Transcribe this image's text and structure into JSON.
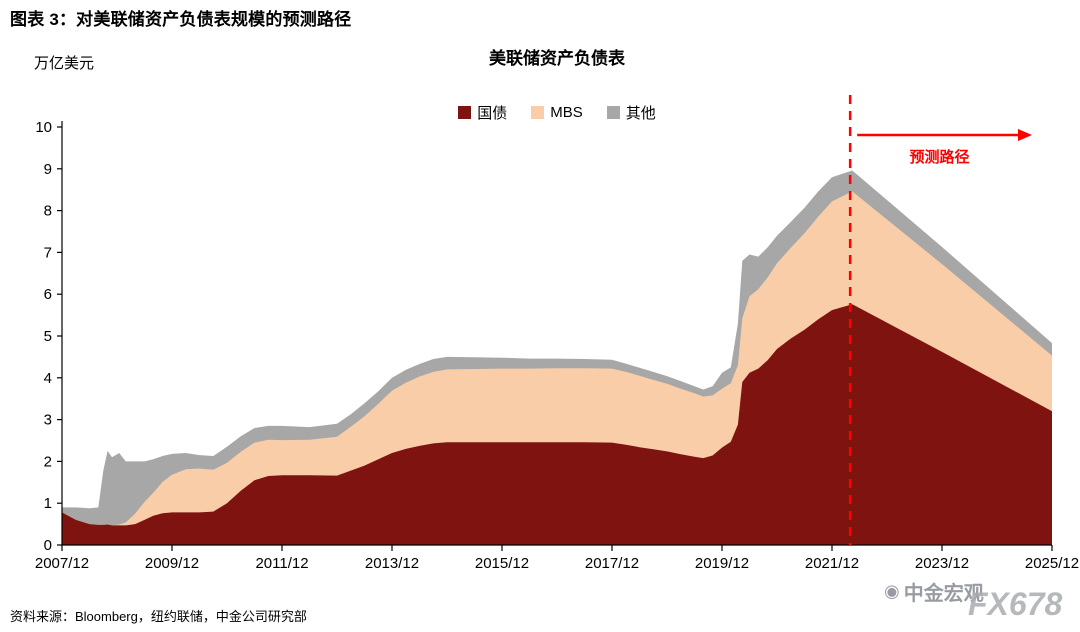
{
  "page": {
    "title": "图表 3：对美联储资产负债表规模的预测路径",
    "source": "资料来源：Bloomberg，纽约联储，中金公司研究部",
    "watermark_cicc": "中金宏观",
    "watermark_fx": "FX678"
  },
  "chart_data": {
    "type": "area",
    "subtype": "stacked",
    "title": "美联储资产负债表",
    "ylabel_unit": "万亿美元",
    "ylim": [
      0,
      10
    ],
    "y_ticks": [
      0,
      1,
      2,
      3,
      4,
      5,
      6,
      7,
      8,
      9,
      10
    ],
    "t_range": [
      2007.92,
      2025.92
    ],
    "x_ticks": [
      {
        "t": 2007.92,
        "label": "2007/12"
      },
      {
        "t": 2009.92,
        "label": "2009/12"
      },
      {
        "t": 2011.92,
        "label": "2011/12"
      },
      {
        "t": 2013.92,
        "label": "2013/12"
      },
      {
        "t": 2015.92,
        "label": "2015/12"
      },
      {
        "t": 2017.92,
        "label": "2017/12"
      },
      {
        "t": 2019.92,
        "label": "2019/12"
      },
      {
        "t": 2021.92,
        "label": "2021/12"
      },
      {
        "t": 2023.92,
        "label": "2023/12"
      },
      {
        "t": 2025.92,
        "label": "2025/12"
      }
    ],
    "legend": [
      {
        "label": "国债",
        "color": "#7F1310"
      },
      {
        "label": "MBS",
        "color": "#F8CDA8"
      },
      {
        "label": "其他",
        "color": "#A7A7A7"
      }
    ],
    "forecast": {
      "divider_t": 2022.25,
      "label": "预测路径",
      "color": "#FF0000"
    },
    "points_format": [
      "year_decimal",
      "国债",
      "MBS",
      "其他"
    ],
    "points": [
      [
        2007.92,
        0.78,
        0.0,
        0.12
      ],
      [
        2008.17,
        0.6,
        0.0,
        0.3
      ],
      [
        2008.42,
        0.5,
        0.0,
        0.38
      ],
      [
        2008.58,
        0.48,
        0.0,
        0.42
      ],
      [
        2008.67,
        0.48,
        0.0,
        1.3
      ],
      [
        2008.75,
        0.49,
        0.0,
        1.76
      ],
      [
        2008.83,
        0.47,
        0.0,
        1.63
      ],
      [
        2008.96,
        0.47,
        0.02,
        1.71
      ],
      [
        2009.08,
        0.47,
        0.07,
        1.46
      ],
      [
        2009.25,
        0.5,
        0.25,
        1.25
      ],
      [
        2009.42,
        0.6,
        0.43,
        0.97
      ],
      [
        2009.58,
        0.7,
        0.55,
        0.8
      ],
      [
        2009.75,
        0.76,
        0.75,
        0.62
      ],
      [
        2009.92,
        0.78,
        0.9,
        0.5
      ],
      [
        2010.17,
        0.78,
        1.03,
        0.39
      ],
      [
        2010.42,
        0.78,
        1.05,
        0.32
      ],
      [
        2010.67,
        0.8,
        1.0,
        0.33
      ],
      [
        2010.92,
        1.0,
        0.97,
        0.38
      ],
      [
        2011.17,
        1.3,
        0.93,
        0.37
      ],
      [
        2011.42,
        1.55,
        0.9,
        0.35
      ],
      [
        2011.67,
        1.65,
        0.87,
        0.33
      ],
      [
        2011.92,
        1.67,
        0.84,
        0.34
      ],
      [
        2012.42,
        1.67,
        0.85,
        0.3
      ],
      [
        2012.92,
        1.66,
        0.93,
        0.31
      ],
      [
        2013.17,
        1.78,
        1.05,
        0.3
      ],
      [
        2013.42,
        1.9,
        1.18,
        0.31
      ],
      [
        2013.67,
        2.05,
        1.33,
        0.3
      ],
      [
        2013.92,
        2.2,
        1.49,
        0.31
      ],
      [
        2014.17,
        2.3,
        1.58,
        0.31
      ],
      [
        2014.42,
        2.37,
        1.66,
        0.3
      ],
      [
        2014.67,
        2.43,
        1.71,
        0.31
      ],
      [
        2014.92,
        2.46,
        1.74,
        0.3
      ],
      [
        2015.42,
        2.46,
        1.75,
        0.28
      ],
      [
        2015.92,
        2.46,
        1.76,
        0.26
      ],
      [
        2016.42,
        2.46,
        1.76,
        0.24
      ],
      [
        2016.92,
        2.46,
        1.77,
        0.23
      ],
      [
        2017.42,
        2.46,
        1.77,
        0.22
      ],
      [
        2017.92,
        2.45,
        1.77,
        0.21
      ],
      [
        2018.17,
        2.4,
        1.74,
        0.2
      ],
      [
        2018.42,
        2.34,
        1.71,
        0.19
      ],
      [
        2018.67,
        2.29,
        1.66,
        0.19
      ],
      [
        2018.92,
        2.24,
        1.62,
        0.18
      ],
      [
        2019.17,
        2.17,
        1.57,
        0.18
      ],
      [
        2019.42,
        2.11,
        1.52,
        0.17
      ],
      [
        2019.58,
        2.08,
        1.47,
        0.17
      ],
      [
        2019.75,
        2.14,
        1.44,
        0.22
      ],
      [
        2019.92,
        2.33,
        1.41,
        0.38
      ],
      [
        2020.08,
        2.47,
        1.4,
        0.38
      ],
      [
        2020.21,
        2.88,
        1.42,
        1.0
      ],
      [
        2020.29,
        3.9,
        1.52,
        1.38
      ],
      [
        2020.42,
        4.12,
        1.83,
        1.0
      ],
      [
        2020.58,
        4.22,
        1.9,
        0.78
      ],
      [
        2020.75,
        4.42,
        1.98,
        0.72
      ],
      [
        2020.92,
        4.69,
        2.05,
        0.66
      ],
      [
        2021.17,
        4.94,
        2.17,
        0.62
      ],
      [
        2021.42,
        5.15,
        2.31,
        0.61
      ],
      [
        2021.67,
        5.4,
        2.46,
        0.6
      ],
      [
        2021.92,
        5.62,
        2.6,
        0.58
      ],
      [
        2022.29,
        5.76,
        2.7,
        0.5
      ],
      [
        2023.92,
        4.62,
        2.1,
        0.41
      ],
      [
        2025.92,
        3.2,
        1.33,
        0.3
      ]
    ]
  }
}
